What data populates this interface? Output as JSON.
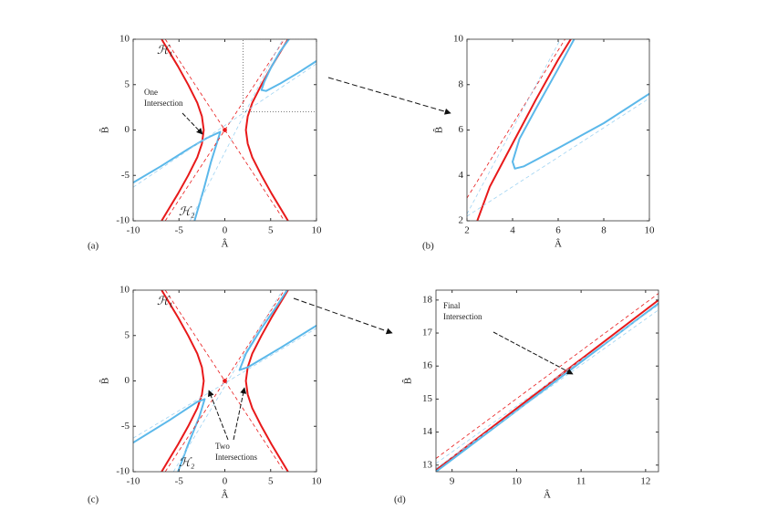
{
  "chart_data": [
    {
      "type": "line",
      "label": "(a)",
      "xlabel": "Â",
      "ylabel": "B̂",
      "xlim": [
        -10,
        10
      ],
      "ylim": [
        -10,
        10
      ],
      "xticks": [
        -10,
        -5,
        0,
        5,
        10
      ],
      "yticks": [
        -10,
        -5,
        0,
        5,
        10
      ],
      "annotation": [
        "One",
        "Intersection"
      ],
      "series": [
        {
          "name": "ℋ₁",
          "color": "#e8191a",
          "dash": false,
          "x": [
            -6.9,
            -5.1,
            -4.0,
            -3.0,
            -2.5,
            -2.3,
            -2.5,
            -3.0,
            -4.0,
            -5.1,
            -6.9,
            null,
            6.9,
            5.1,
            4.0,
            3.0,
            2.5,
            2.3,
            2.5,
            3.0,
            4.0,
            5.1,
            6.9
          ],
          "values": [
            -10,
            -7,
            -5,
            -3,
            -1.5,
            0,
            1.5,
            3,
            5,
            7,
            10,
            null,
            -10,
            -7,
            -5,
            -3,
            -1.5,
            0,
            1.5,
            3,
            5,
            7,
            10
          ]
        },
        {
          "name": "ℋ₂",
          "color": "#5bb8ea",
          "dash": false,
          "x": [
            -10,
            -7,
            -4,
            -2,
            -0.5,
            -0.8,
            -1.5,
            -2.3,
            -3.3,
            null,
            10,
            8,
            6,
            4.5,
            4.0,
            4.3,
            5,
            6,
            7
          ],
          "values": [
            -5.8,
            -4.0,
            -2.1,
            -0.9,
            -0.2,
            -1.2,
            -3.5,
            -6.5,
            -10,
            null,
            7.6,
            6.3,
            5.1,
            4.3,
            4.4,
            5.3,
            6.8,
            8.6,
            10
          ]
        },
        {
          "color": "#e8191a",
          "dash": true,
          "x": [
            -6.5,
            6.5,
            null,
            -6.5,
            6.5
          ],
          "values": [
            10,
            -10,
            null,
            -10,
            10
          ]
        },
        {
          "color": "#9fd3f2",
          "dash": true,
          "x": [
            -10,
            10,
            null,
            -3.8,
            6.3
          ],
          "values": [
            -6.3,
            7.3,
            null,
            -10,
            10
          ]
        },
        {
          "type": "scatter",
          "color": "#e8191a",
          "x": [
            0
          ],
          "values": [
            0
          ]
        }
      ]
    },
    {
      "type": "line",
      "label": "(b)",
      "xlabel": "Â",
      "ylabel": "B̂",
      "xlim": [
        2,
        10
      ],
      "ylim": [
        2,
        10
      ],
      "xticks": [
        2,
        4,
        6,
        8,
        10
      ],
      "yticks": [
        2,
        4,
        6,
        8,
        10
      ],
      "series": [
        {
          "color": "#e8191a",
          "dash": false,
          "x": [
            2.45,
            3,
            4,
            5,
            6,
            6.55
          ],
          "values": [
            2,
            3.5,
            5.4,
            7.3,
            9.1,
            10
          ]
        },
        {
          "color": "#5bb8ea",
          "dash": false,
          "x": [
            10,
            8,
            6,
            4.5,
            4.1,
            4.0,
            4.3,
            5,
            6,
            6.7
          ],
          "values": [
            7.6,
            6.3,
            5.2,
            4.4,
            4.3,
            4.6,
            5.6,
            6.9,
            8.7,
            10
          ]
        },
        {
          "color": "#e8191a",
          "dash": true,
          "x": [
            2,
            6.3
          ],
          "values": [
            3,
            10
          ]
        },
        {
          "color": "#9fd3f2",
          "dash": true,
          "x": [
            2,
            10,
            null,
            2,
            6.1
          ],
          "values": [
            2.2,
            7.4,
            null,
            2.3,
            10
          ]
        }
      ]
    },
    {
      "type": "line",
      "label": "(c)",
      "xlabel": "Â",
      "ylabel": "B̂",
      "xlim": [
        -10,
        10
      ],
      "ylim": [
        -10,
        10
      ],
      "xticks": [
        -10,
        -5,
        0,
        5,
        10
      ],
      "yticks": [
        -10,
        -5,
        0,
        5,
        10
      ],
      "annotation": [
        "Two",
        "Intersections"
      ],
      "series": [
        {
          "name": "ℋ₁",
          "color": "#e8191a",
          "dash": false,
          "x": [
            -6.9,
            -5.1,
            -4.0,
            -3.0,
            -2.5,
            -2.3,
            -2.5,
            -3.0,
            -4.0,
            -5.1,
            -6.9,
            null,
            6.9,
            5.1,
            4.0,
            3.0,
            2.5,
            2.3,
            2.5,
            3.0,
            4.0,
            5.1,
            6.9
          ],
          "values": [
            -10,
            -7,
            -5,
            -3,
            -1.5,
            0,
            1.5,
            3,
            5,
            7,
            10,
            null,
            -10,
            -7,
            -5,
            -3,
            -1.5,
            0,
            1.5,
            3,
            5,
            7,
            10
          ]
        },
        {
          "name": "ℋ₂",
          "color": "#5bb8ea",
          "dash": false,
          "x": [
            -10,
            -6,
            -3,
            -2.2,
            -2.8,
            -4,
            -5.1,
            null,
            10,
            6,
            2.5,
            1.6,
            2.3,
            4,
            5.5,
            6.8
          ],
          "values": [
            -6.8,
            -4.3,
            -2.3,
            -2.0,
            -4,
            -7,
            -10,
            null,
            6.1,
            3.6,
            1.5,
            1.2,
            3,
            5.8,
            8,
            10
          ]
        },
        {
          "color": "#e8191a",
          "dash": true,
          "x": [
            -6.5,
            6.5,
            null,
            -6.5,
            6.5
          ],
          "values": [
            10,
            -10,
            null,
            -10,
            10
          ]
        },
        {
          "color": "#9fd3f2",
          "dash": true,
          "x": [
            -10,
            10,
            null,
            -5.6,
            6.3
          ],
          "values": [
            -6.3,
            5.8,
            null,
            -10,
            10
          ]
        },
        {
          "type": "scatter",
          "color": "#e8191a",
          "x": [
            0
          ],
          "values": [
            0
          ]
        }
      ]
    },
    {
      "type": "line",
      "label": "(d)",
      "xlabel": "Â",
      "ylabel": "B̂",
      "xlim": [
        8.75,
        12.2
      ],
      "ylim": [
        12.8,
        18.3
      ],
      "xticks": [
        9,
        10,
        11,
        12
      ],
      "yticks": [
        13,
        14,
        15,
        16,
        17,
        18
      ],
      "annotation": [
        "Final",
        "Intersection"
      ],
      "series": [
        {
          "color": "#e8191a",
          "dash": false,
          "x": [
            8.75,
            12.2
          ],
          "values": [
            12.85,
            18.0
          ]
        },
        {
          "color": "#5bb8ea",
          "dash": false,
          "x": [
            8.75,
            12.2
          ],
          "values": [
            12.8,
            17.9
          ]
        },
        {
          "color": "#e8191a",
          "dash": true,
          "x": [
            8.75,
            12.2
          ],
          "values": [
            13.2,
            18.2
          ]
        },
        {
          "color": "#9fd3f2",
          "dash": true,
          "x": [
            8.75,
            12.2,
            null,
            8.75,
            12.2
          ],
          "values": [
            12.9,
            17.7,
            null,
            13.05,
            17.85
          ]
        }
      ]
    }
  ]
}
